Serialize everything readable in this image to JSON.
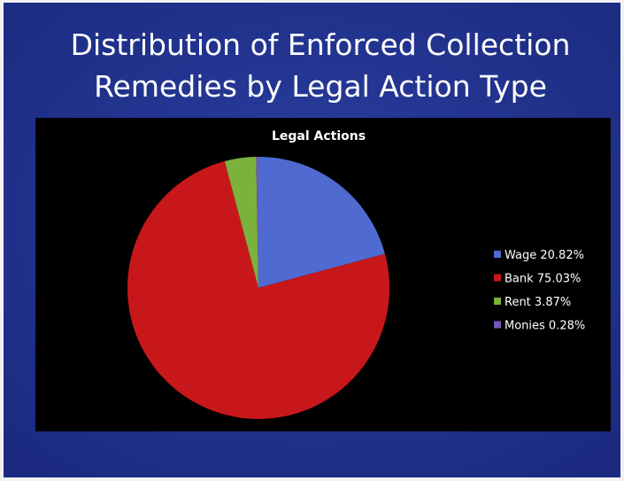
{
  "title": [
    "Distribution of Enforced Collection",
    "Remedies by Legal Action Type"
  ],
  "chart_data": {
    "type": "pie",
    "title": "Legal Actions",
    "categories": [
      "Wage 20.82%",
      "Bank 75.03%",
      "Rent 3.87%",
      "Monies 0.28%"
    ],
    "values": [
      20.82,
      75.03,
      3.87,
      0.28
    ],
    "colors": [
      "#4f6bd2",
      "#c8171b",
      "#7bb23b",
      "#7457b8"
    ],
    "legend": "right"
  }
}
